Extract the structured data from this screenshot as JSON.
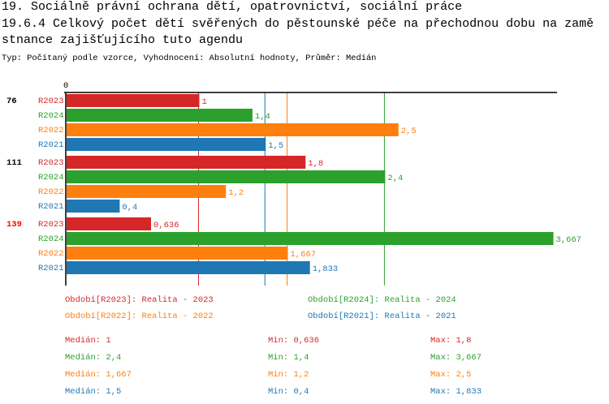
{
  "header": {
    "title": "19. Sociálně právní ochrana dětí, opatrovnictví, sociální práce",
    "subtitle_line1": "19.6.4 Celkový počet dětí svěřených do pěstounské péče na přechodnou dobu na zamě",
    "subtitle_line2": "stnance zajišťujícího tuto agendu",
    "info": "Typ: Počítaný podle vzorce, Vyhodnocení: Absolutní hodnoty, Průměr: Medián"
  },
  "chart_data": {
    "type": "bar",
    "orientation": "horizontal",
    "x_tick": "0",
    "xlim": [
      0,
      3.667
    ],
    "groups": [
      {
        "label": "76",
        "label_color": "#000000",
        "bars": [
          {
            "series": "R2023",
            "value": 1,
            "label": "1"
          },
          {
            "series": "R2024",
            "value": 1.4,
            "label": "1,4"
          },
          {
            "series": "R2022",
            "value": 2.5,
            "label": "2,5"
          },
          {
            "series": "R2021",
            "value": 1.5,
            "label": "1,5"
          }
        ]
      },
      {
        "label": "111",
        "label_color": "#000000",
        "bars": [
          {
            "series": "R2023",
            "value": 1.8,
            "label": "1,8"
          },
          {
            "series": "R2024",
            "value": 2.4,
            "label": "2,4"
          },
          {
            "series": "R2022",
            "value": 1.2,
            "label": "1,2"
          },
          {
            "series": "R2021",
            "value": 0.4,
            "label": "0,4"
          }
        ]
      },
      {
        "label": "139",
        "label_color": "#ff0000",
        "bars": [
          {
            "series": "R2023",
            "value": 0.636,
            "label": "0,636"
          },
          {
            "series": "R2024",
            "value": 3.667,
            "label": "3,667"
          },
          {
            "series": "R2022",
            "value": 1.667,
            "label": "1,667"
          },
          {
            "series": "R2021",
            "value": 1.833,
            "label": "1,833"
          }
        ]
      }
    ],
    "series_colors": {
      "R2023": "#d62728",
      "R2024": "#2ca02c",
      "R2022": "#ff7f0e",
      "R2021": "#1f77b4"
    },
    "median_lines": [
      {
        "series": "R2023",
        "value": 1
      },
      {
        "series": "R2021",
        "value": 1.5
      },
      {
        "series": "R2022",
        "value": 1.667
      },
      {
        "series": "R2024",
        "value": 2.4
      }
    ],
    "legend": [
      {
        "series": "R2023",
        "text": "Období[R2023]: Realita - 2023"
      },
      {
        "series": "R2024",
        "text": "Období[R2024]: Realita - 2024"
      },
      {
        "series": "R2022",
        "text": "Období[R2022]: Realita - 2022"
      },
      {
        "series": "R2021",
        "text": "Období[R2021]: Realita - 2021"
      }
    ],
    "stats": [
      {
        "series": "R2023",
        "median": "Medián: 1",
        "min": "Min: 0,636",
        "max": "Max: 1,8"
      },
      {
        "series": "R2024",
        "median": "Medián: 2,4",
        "min": "Min: 1,4",
        "max": "Max: 3,667"
      },
      {
        "series": "R2022",
        "median": "Medián: 1,667",
        "min": "Min: 1,2",
        "max": "Max: 2,5"
      },
      {
        "series": "R2021",
        "median": "Medián: 1,5",
        "min": "Min: 0,4",
        "max": "Max: 1,833"
      }
    ]
  }
}
